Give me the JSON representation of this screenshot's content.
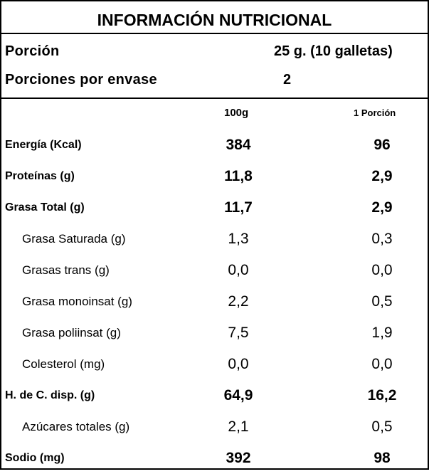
{
  "title": "INFORMACIÓN NUTRICIONAL",
  "serving": {
    "label": "Porción",
    "value": "25 g. (10 galletas)"
  },
  "servings_per_package": {
    "label": "Porciones por envase",
    "value": "2"
  },
  "columns": {
    "per_100g": "100g",
    "per_serving": "1 Porción"
  },
  "rows": [
    {
      "name": "Energía (Kcal)",
      "per_100g": "384",
      "per_serving": "96",
      "style": "main"
    },
    {
      "name": "Proteínas (g)",
      "per_100g": "11,8",
      "per_serving": "2,9",
      "style": "main"
    },
    {
      "name": "Grasa Total (g)",
      "per_100g": "11,7",
      "per_serving": "2,9",
      "style": "main"
    },
    {
      "name": "Grasa Saturada (g)",
      "per_100g": "1,3",
      "per_serving": "0,3",
      "style": "sub"
    },
    {
      "name": "Grasas trans (g)",
      "per_100g": "0,0",
      "per_serving": "0,0",
      "style": "sub"
    },
    {
      "name": "Grasa monoinsat (g)",
      "per_100g": "2,2",
      "per_serving": "0,5",
      "style": "sub"
    },
    {
      "name": "Grasa poliinsat (g)",
      "per_100g": "7,5",
      "per_serving": "1,9",
      "style": "sub"
    },
    {
      "name": "Colesterol (mg)",
      "per_100g": "0,0",
      "per_serving": "0,0",
      "style": "sub"
    },
    {
      "name": "H. de C. disp. (g)",
      "per_100g": "64,9",
      "per_serving": "16,2",
      "style": "main"
    },
    {
      "name": "Azúcares totales (g)",
      "per_100g": "2,1",
      "per_serving": "0,5",
      "style": "sub"
    },
    {
      "name": "Sodio (mg)",
      "per_100g": "392",
      "per_serving": "98",
      "style": "main"
    }
  ]
}
